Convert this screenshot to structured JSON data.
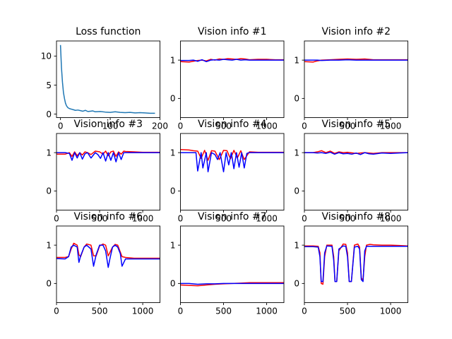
{
  "colors": {
    "loss": "#1f77b4",
    "red": "#ff0000",
    "blue": "#0000ff"
  },
  "chart_data": [
    {
      "type": "line",
      "title": "Loss function",
      "xlim": [
        -8,
        200
      ],
      "ylim": [
        -0.6,
        12.6
      ],
      "xticks": [
        0,
        100,
        200
      ],
      "yticks": [
        0,
        5,
        10
      ],
      "series": [
        {
          "color": "#1f77b4",
          "x": [
            0,
            2,
            4,
            6,
            8,
            10,
            12,
            15,
            18,
            22,
            26,
            30,
            35,
            40,
            45,
            50,
            55,
            60,
            65,
            70,
            80,
            90,
            100,
            110,
            120,
            130,
            140,
            150,
            160,
            170,
            180,
            190
          ],
          "y": [
            11.9,
            8.0,
            5.5,
            3.7,
            2.7,
            1.9,
            1.45,
            1.1,
            0.95,
            0.85,
            0.75,
            0.65,
            0.7,
            0.6,
            0.5,
            0.65,
            0.45,
            0.5,
            0.55,
            0.4,
            0.45,
            0.35,
            0.3,
            0.4,
            0.3,
            0.25,
            0.3,
            0.2,
            0.25,
            0.2,
            0.15,
            0.15
          ]
        }
      ]
    },
    {
      "type": "line",
      "title": "Vision info #1",
      "xlim": [
        0,
        1200
      ],
      "ylim": [
        -0.5,
        1.5
      ],
      "xticks": [
        0,
        500,
        1000
      ],
      "yticks": [
        0,
        1
      ],
      "series": [
        {
          "color": "#ff0000",
          "x": [
            0,
            100,
            150,
            200,
            250,
            300,
            350,
            400,
            450,
            500,
            550,
            600,
            650,
            700,
            750,
            800,
            900,
            1000,
            1100,
            1200
          ],
          "y": [
            0.96,
            0.95,
            0.97,
            0.99,
            1.0,
            0.98,
            1.02,
            1.0,
            1.03,
            1.02,
            1.04,
            1.03,
            1.02,
            1.04,
            1.03,
            1.01,
            1.02,
            1.02,
            1.01,
            1.01
          ]
        },
        {
          "color": "#0000ff",
          "x": [
            0,
            100,
            150,
            200,
            250,
            300,
            350,
            400,
            450,
            500,
            550,
            600,
            650,
            700,
            750,
            800,
            900,
            1000,
            1100,
            1200
          ],
          "y": [
            0.99,
            0.99,
            1.0,
            0.97,
            1.01,
            0.96,
            1.0,
            1.01,
            1.0,
            1.02,
            1.01,
            1.0,
            1.02,
            1.0,
            1.01,
            1.0,
            1.0,
            1.0,
            1.0,
            1.0
          ]
        }
      ]
    },
    {
      "type": "line",
      "title": "Vision info #2",
      "xlim": [
        0,
        1200
      ],
      "ylim": [
        -0.5,
        1.5
      ],
      "xticks": [
        0,
        500,
        1000
      ],
      "yticks": [
        0,
        1
      ],
      "series": [
        {
          "color": "#ff0000",
          "x": [
            0,
            100,
            150,
            200,
            300,
            400,
            500,
            600,
            700,
            800,
            900,
            1000,
            1100,
            1200
          ],
          "y": [
            0.96,
            0.95,
            0.98,
            1.0,
            1.01,
            1.02,
            1.03,
            1.02,
            1.03,
            1.01,
            1.01,
            1.01,
            1.01,
            1.01
          ]
        },
        {
          "color": "#0000ff",
          "x": [
            0,
            100,
            150,
            200,
            300,
            400,
            500,
            600,
            700,
            800,
            900,
            1000,
            1100,
            1200
          ],
          "y": [
            1.0,
            1.0,
            1.0,
            0.99,
            1.0,
            1.0,
            1.01,
            1.0,
            1.0,
            1.0,
            1.0,
            1.0,
            1.0,
            1.0
          ]
        }
      ]
    },
    {
      "type": "line",
      "title": "Vision info #3",
      "xlim": [
        0,
        1200
      ],
      "ylim": [
        -0.5,
        1.5
      ],
      "xticks": [
        0,
        500,
        1000
      ],
      "yticks": [
        0,
        1
      ],
      "series": [
        {
          "color": "#ff0000",
          "x": [
            0,
            100,
            150,
            180,
            210,
            240,
            270,
            300,
            330,
            360,
            400,
            450,
            500,
            540,
            570,
            600,
            630,
            660,
            690,
            720,
            750,
            780,
            800,
            900,
            1000,
            1100,
            1200
          ],
          "y": [
            0.96,
            0.96,
            1.0,
            0.9,
            1.02,
            0.92,
            1.0,
            0.94,
            1.02,
            1.0,
            0.95,
            1.04,
            1.02,
            0.96,
            1.04,
            0.92,
            1.02,
            1.04,
            0.9,
            1.02,
            0.96,
            1.04,
            1.03,
            1.02,
            1.01,
            1.01,
            1.01
          ]
        },
        {
          "color": "#0000ff",
          "x": [
            0,
            100,
            150,
            180,
            210,
            240,
            270,
            300,
            330,
            360,
            400,
            450,
            480,
            510,
            540,
            570,
            600,
            630,
            660,
            690,
            720,
            750,
            780,
            800,
            900,
            1000,
            1100,
            1200
          ],
          "y": [
            1.0,
            1.0,
            0.98,
            0.8,
            1.0,
            0.86,
            1.0,
            0.83,
            0.97,
            1.0,
            0.86,
            1.0,
            0.95,
            0.85,
            1.0,
            0.78,
            1.0,
            0.8,
            1.0,
            0.76,
            1.0,
            0.82,
            1.0,
            1.0,
            1.0,
            1.0,
            1.0,
            1.0
          ]
        }
      ]
    },
    {
      "type": "line",
      "title": "Vision info #4",
      "xlim": [
        0,
        1200
      ],
      "ylim": [
        -0.5,
        1.5
      ],
      "xticks": [
        0,
        500,
        1000
      ],
      "yticks": [
        0,
        1
      ],
      "series": [
        {
          "color": "#ff0000",
          "x": [
            0,
            100,
            150,
            200,
            240,
            280,
            320,
            360,
            400,
            450,
            500,
            540,
            580,
            620,
            660,
            700,
            740,
            800,
            900,
            1000,
            1100,
            1200
          ],
          "y": [
            1.08,
            1.07,
            1.05,
            1.04,
            0.85,
            1.06,
            0.8,
            1.05,
            1.04,
            0.82,
            1.06,
            1.05,
            0.84,
            1.06,
            0.86,
            1.05,
            0.82,
            1.02,
            1.01,
            1.01,
            1.01,
            1.01
          ]
        },
        {
          "color": "#0000ff",
          "x": [
            0,
            100,
            150,
            180,
            200,
            240,
            260,
            300,
            320,
            360,
            400,
            430,
            460,
            500,
            530,
            560,
            590,
            620,
            650,
            680,
            710,
            740,
            770,
            800,
            900,
            1000,
            1100,
            1200
          ],
          "y": [
            1.0,
            1.0,
            1.0,
            1.0,
            0.52,
            1.0,
            0.6,
            1.0,
            0.5,
            1.0,
            0.95,
            0.82,
            1.0,
            0.5,
            1.0,
            0.68,
            1.0,
            0.58,
            1.0,
            0.62,
            1.0,
            0.6,
            0.98,
            1.0,
            1.0,
            1.0,
            1.0,
            1.0
          ]
        }
      ]
    },
    {
      "type": "line",
      "title": "Vision info #5",
      "xlim": [
        0,
        1200
      ],
      "ylim": [
        -0.5,
        1.5
      ],
      "xticks": [
        0,
        500,
        1000
      ],
      "yticks": [
        0,
        1
      ],
      "series": [
        {
          "color": "#ff0000",
          "x": [
            0,
            100,
            150,
            200,
            250,
            300,
            350,
            400,
            450,
            500,
            600,
            700,
            800,
            900,
            1000,
            1100,
            1200
          ],
          "y": [
            1.0,
            1.0,
            1.02,
            1.05,
            1.0,
            1.04,
            0.98,
            1.02,
            1.0,
            1.01,
            0.98,
            1.0,
            0.98,
            1.0,
            1.0,
            1.0,
            1.0
          ]
        },
        {
          "color": "#0000ff",
          "x": [
            0,
            100,
            150,
            200,
            250,
            300,
            350,
            400,
            450,
            500,
            550,
            600,
            650,
            700,
            750,
            800,
            900,
            1000,
            1100,
            1200
          ],
          "y": [
            1.0,
            1.0,
            0.99,
            1.0,
            0.98,
            1.01,
            0.96,
            1.0,
            0.97,
            0.98,
            0.96,
            0.99,
            0.95,
            1.0,
            0.97,
            0.96,
            0.99,
            0.98,
            0.99,
            1.0
          ]
        }
      ]
    },
    {
      "type": "line",
      "title": "Vision info #6",
      "xlim": [
        0,
        1200
      ],
      "ylim": [
        -0.5,
        1.5
      ],
      "xticks": [
        0,
        500,
        1000
      ],
      "yticks": [
        0,
        1
      ],
      "series": [
        {
          "color": "#ff0000",
          "x": [
            0,
            100,
            140,
            170,
            200,
            240,
            260,
            280,
            320,
            350,
            400,
            430,
            460,
            500,
            540,
            570,
            600,
            650,
            680,
            710,
            760,
            800,
            900,
            1000,
            1100,
            1200
          ],
          "y": [
            0.68,
            0.68,
            0.7,
            0.9,
            1.05,
            1.0,
            0.75,
            0.7,
            0.95,
            1.03,
            1.0,
            0.72,
            0.72,
            0.98,
            1.03,
            1.0,
            0.72,
            0.95,
            1.02,
            1.0,
            0.7,
            0.68,
            0.66,
            0.66,
            0.66,
            0.66
          ]
        },
        {
          "color": "#0000ff",
          "x": [
            0,
            100,
            140,
            170,
            200,
            240,
            260,
            280,
            320,
            350,
            400,
            430,
            460,
            500,
            540,
            570,
            600,
            620,
            650,
            680,
            710,
            740,
            760,
            800,
            900,
            1000,
            1100,
            1200
          ],
          "y": [
            0.65,
            0.64,
            0.7,
            0.95,
            1.0,
            0.95,
            0.55,
            0.72,
            0.95,
            1.0,
            0.9,
            0.45,
            0.75,
            1.0,
            1.0,
            0.85,
            0.42,
            0.65,
            0.95,
            1.0,
            0.95,
            0.78,
            0.45,
            0.64,
            0.64,
            0.64,
            0.64,
            0.64
          ]
        }
      ]
    },
    {
      "type": "line",
      "title": "Vision info #7",
      "xlim": [
        0,
        1200
      ],
      "ylim": [
        -0.5,
        1.5
      ],
      "xticks": [
        0,
        500,
        1000
      ],
      "yticks": [
        0,
        1
      ],
      "series": [
        {
          "color": "#ff0000",
          "x": [
            0,
            100,
            200,
            250,
            300,
            350,
            400,
            500,
            600,
            700,
            800,
            900,
            1000,
            1100,
            1200
          ],
          "y": [
            -0.04,
            -0.05,
            -0.06,
            -0.05,
            -0.04,
            -0.03,
            -0.02,
            -0.01,
            0.0,
            0.01,
            0.02,
            0.02,
            0.02,
            0.02,
            0.02
          ]
        },
        {
          "color": "#0000ff",
          "x": [
            0,
            100,
            200,
            300,
            400,
            500,
            600,
            700,
            800,
            900,
            1000,
            1100,
            1200
          ],
          "y": [
            0.0,
            0.0,
            -0.02,
            -0.01,
            -0.01,
            0.0,
            0.0,
            0.0,
            0.0,
            0.0,
            0.0,
            0.0,
            0.0
          ]
        }
      ]
    },
    {
      "type": "line",
      "title": "Vision info #8",
      "xlim": [
        0,
        1200
      ],
      "ylim": [
        -0.5,
        1.5
      ],
      "xticks": [
        0,
        500,
        1000
      ],
      "yticks": [
        0,
        1
      ],
      "series": [
        {
          "color": "#ff0000",
          "x": [
            0,
            100,
            160,
            180,
            195,
            215,
            235,
            260,
            320,
            340,
            355,
            375,
            400,
            450,
            480,
            500,
            520,
            545,
            580,
            620,
            640,
            660,
            680,
            700,
            720,
            760,
            800,
            900,
            1000,
            1100,
            1200
          ],
          "y": [
            0.98,
            0.98,
            0.97,
            0.8,
            0.0,
            -0.02,
            0.7,
            1.0,
            1.0,
            0.7,
            0.05,
            0.05,
            0.85,
            1.03,
            1.02,
            0.8,
            0.05,
            0.05,
            1.0,
            1.03,
            0.95,
            0.15,
            0.08,
            0.7,
            1.0,
            1.02,
            1.01,
            1.0,
            1.0,
            0.99,
            0.98
          ]
        },
        {
          "color": "#0000ff",
          "x": [
            0,
            100,
            160,
            180,
            195,
            215,
            235,
            260,
            320,
            340,
            355,
            375,
            400,
            450,
            480,
            500,
            520,
            545,
            580,
            620,
            640,
            660,
            680,
            700,
            720,
            760,
            800,
            900,
            1000,
            1100,
            1200
          ],
          "y": [
            0.96,
            0.96,
            0.95,
            0.7,
            0.05,
            0.05,
            0.8,
            0.98,
            0.97,
            0.6,
            0.05,
            0.05,
            0.9,
            0.98,
            0.97,
            0.7,
            0.05,
            0.05,
            0.95,
            0.97,
            0.9,
            0.1,
            0.05,
            0.85,
            0.97,
            0.97,
            0.97,
            0.97,
            0.97,
            0.97,
            0.97
          ]
        }
      ]
    }
  ]
}
